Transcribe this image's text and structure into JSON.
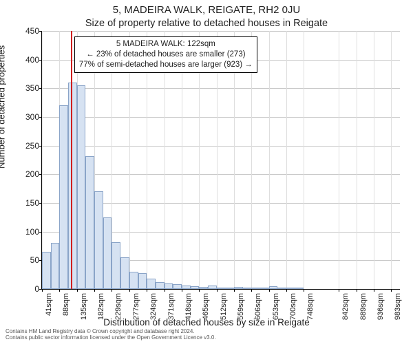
{
  "title": "5, MADEIRA WALK, REIGATE, RH2 0JU",
  "subtitle": "Size of property relative to detached houses in Reigate",
  "ylabel": "Number of detached properties",
  "xlabel": "Distribution of detached houses by size in Reigate",
  "footer_line1": "Contains HM Land Registry data © Crown copyright and database right 2024.",
  "footer_line2": "Contains public sector information licensed under the Open Government Licence v3.0.",
  "chart": {
    "type": "histogram",
    "plot_bg": "#ffffff",
    "grid_color": "#c8c8c8",
    "ylim": [
      0,
      450
    ],
    "ytick_step": 50,
    "xtick_labels": [
      "41sqm",
      "88sqm",
      "135sqm",
      "182sqm",
      "229sqm",
      "277sqm",
      "324sqm",
      "371sqm",
      "418sqm",
      "465sqm",
      "512sqm",
      "559sqm",
      "606sqm",
      "653sqm",
      "700sqm",
      "748sqm",
      "842sqm",
      "889sqm",
      "936sqm",
      "983sqm"
    ],
    "xtick_positions": [
      0,
      2,
      4,
      6,
      8,
      10,
      12,
      14,
      16,
      18,
      20,
      22,
      24,
      26,
      28,
      30,
      34,
      36,
      38,
      40
    ],
    "n_bins": 41,
    "bar_fill": "#d6e2f2",
    "bar_stroke": "#8aa4c8",
    "values": [
      65,
      80,
      320,
      360,
      355,
      232,
      170,
      125,
      82,
      55,
      30,
      28,
      18,
      12,
      10,
      8,
      6,
      5,
      4,
      6,
      3,
      3,
      4,
      2,
      3,
      2,
      5,
      2,
      2,
      2,
      0,
      0,
      0,
      0,
      0,
      0,
      0,
      0,
      0,
      0,
      0
    ],
    "marker": {
      "bin_index": 3.35,
      "color": "#d02020"
    },
    "annotation": {
      "line1": "5 MADEIRA WALK: 122sqm",
      "line2": "← 23% of detached houses are smaller (273)",
      "line3": "77% of semi-detached houses are larger (923) →",
      "left_bin": 3.7,
      "top_value": 440,
      "border": "#000000",
      "bg": "#ffffff"
    },
    "title_fontsize": 15,
    "subtitle_fontsize": 14.5,
    "axis_label_fontsize": 13,
    "tick_fontsize": 12,
    "xtick_fontsize": 11,
    "annotation_fontsize": 11.5
  }
}
